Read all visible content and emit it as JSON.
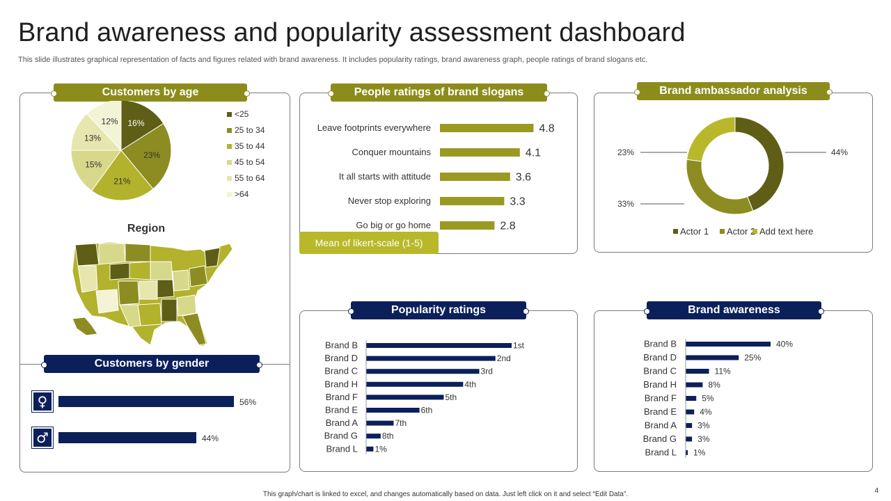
{
  "title": "Brand awareness and popularity assessment dashboard",
  "subtitle": "This slide illustrates graphical representation of facts and figures related with brand awareness. It includes popularity ratings, brand awareness graph, people ratings of brand slogans etc.",
  "footer": "This graph/chart is linked to excel, and changes automatically based on data. Just left click on it and select “Edit Data”.",
  "page_number": "4",
  "colors": {
    "olive": "#8c8c1c",
    "navy": "#0b1f5b",
    "bar_olive": "#9a9a22"
  },
  "panels": {
    "age": "Customers by age",
    "slogans": "People ratings of brand slogans",
    "ambassador": "Brand ambassador analysis",
    "gender": "Customers by gender",
    "popularity": "Popularity ratings",
    "awareness": "Brand awareness"
  },
  "region_title": "Region",
  "likert_label": "Mean of likert-scale (1-5)",
  "gender": {
    "items": [
      {
        "icon": "female-icon",
        "glyph": "♀",
        "value": 56,
        "label": "56%"
      },
      {
        "icon": "male-icon",
        "glyph": "♂",
        "value": 44,
        "label": "44%"
      }
    ]
  },
  "chart_data": [
    {
      "id": "customers-by-age",
      "type": "pie",
      "title": "Customers by age",
      "categories": [
        "<25",
        "25 to 34",
        "35 to 44",
        "45 to 54",
        "55 to 64",
        ">64"
      ],
      "values": [
        16,
        23,
        21,
        15,
        13,
        12
      ],
      "labels": [
        "16%",
        "23%",
        "21%",
        "15%",
        "13%",
        "12%"
      ],
      "colors": [
        "#5e5e16",
        "#8c8c22",
        "#b2b22c",
        "#d8d88a",
        "#e6e6ae",
        "#f3f3d6"
      ],
      "legend": "right"
    },
    {
      "id": "people-ratings-slogans",
      "type": "bar",
      "orientation": "horizontal",
      "title": "People ratings of brand slogans",
      "categories": [
        "Leave footprints everywhere",
        "Conquer mountains",
        "It all starts with attitude",
        "Never stop exploring",
        "Go big or go home"
      ],
      "values": [
        4.8,
        4.1,
        3.6,
        3.3,
        2.8
      ],
      "labels": [
        "4.8",
        "4.1",
        "3.6",
        "3.3",
        "2.8"
      ],
      "xlabel": "Mean of likert-scale (1-5)",
      "xlim": [
        0,
        5
      ]
    },
    {
      "id": "brand-ambassador",
      "type": "pie",
      "variant": "donut",
      "title": "Brand ambassador analysis",
      "categories": [
        "Actor 1",
        "Actor 2",
        "Add text here"
      ],
      "values": [
        44,
        33,
        23
      ],
      "labels": [
        "44%",
        "33%",
        "23%"
      ],
      "colors": [
        "#5e5e16",
        "#8c8c22",
        "#b8b82a"
      ],
      "legend": "bottom"
    },
    {
      "id": "popularity-ratings",
      "type": "bar",
      "orientation": "horizontal",
      "title": "Popularity ratings",
      "categories": [
        "Brand B",
        "Brand D",
        "Brand C",
        "Brand H",
        "Brand F",
        "Brand E",
        "Brand A",
        "Brand G",
        "Brand L"
      ],
      "values": [
        9,
        8,
        7,
        6,
        4.8,
        3.3,
        1.7,
        0.9,
        0.45
      ],
      "labels": [
        "1st",
        "2nd",
        "3rd",
        "4th",
        "5th",
        "6th",
        "7th",
        "8th",
        "1%"
      ],
      "xlim": [
        0,
        9
      ]
    },
    {
      "id": "brand-awareness",
      "type": "bar",
      "orientation": "horizontal",
      "title": "Brand awareness",
      "categories": [
        "Brand B",
        "Brand D",
        "Brand C",
        "Brand H",
        "Brand F",
        "Brand E",
        "Brand A",
        "Brand G",
        "Brand L"
      ],
      "values": [
        40,
        25,
        11,
        8,
        5,
        4,
        3,
        3,
        1
      ],
      "labels": [
        "40%",
        "25%",
        "11%",
        "8%",
        "5%",
        "4%",
        "3%",
        "3%",
        "1%"
      ],
      "xlim": [
        0,
        40
      ]
    }
  ]
}
